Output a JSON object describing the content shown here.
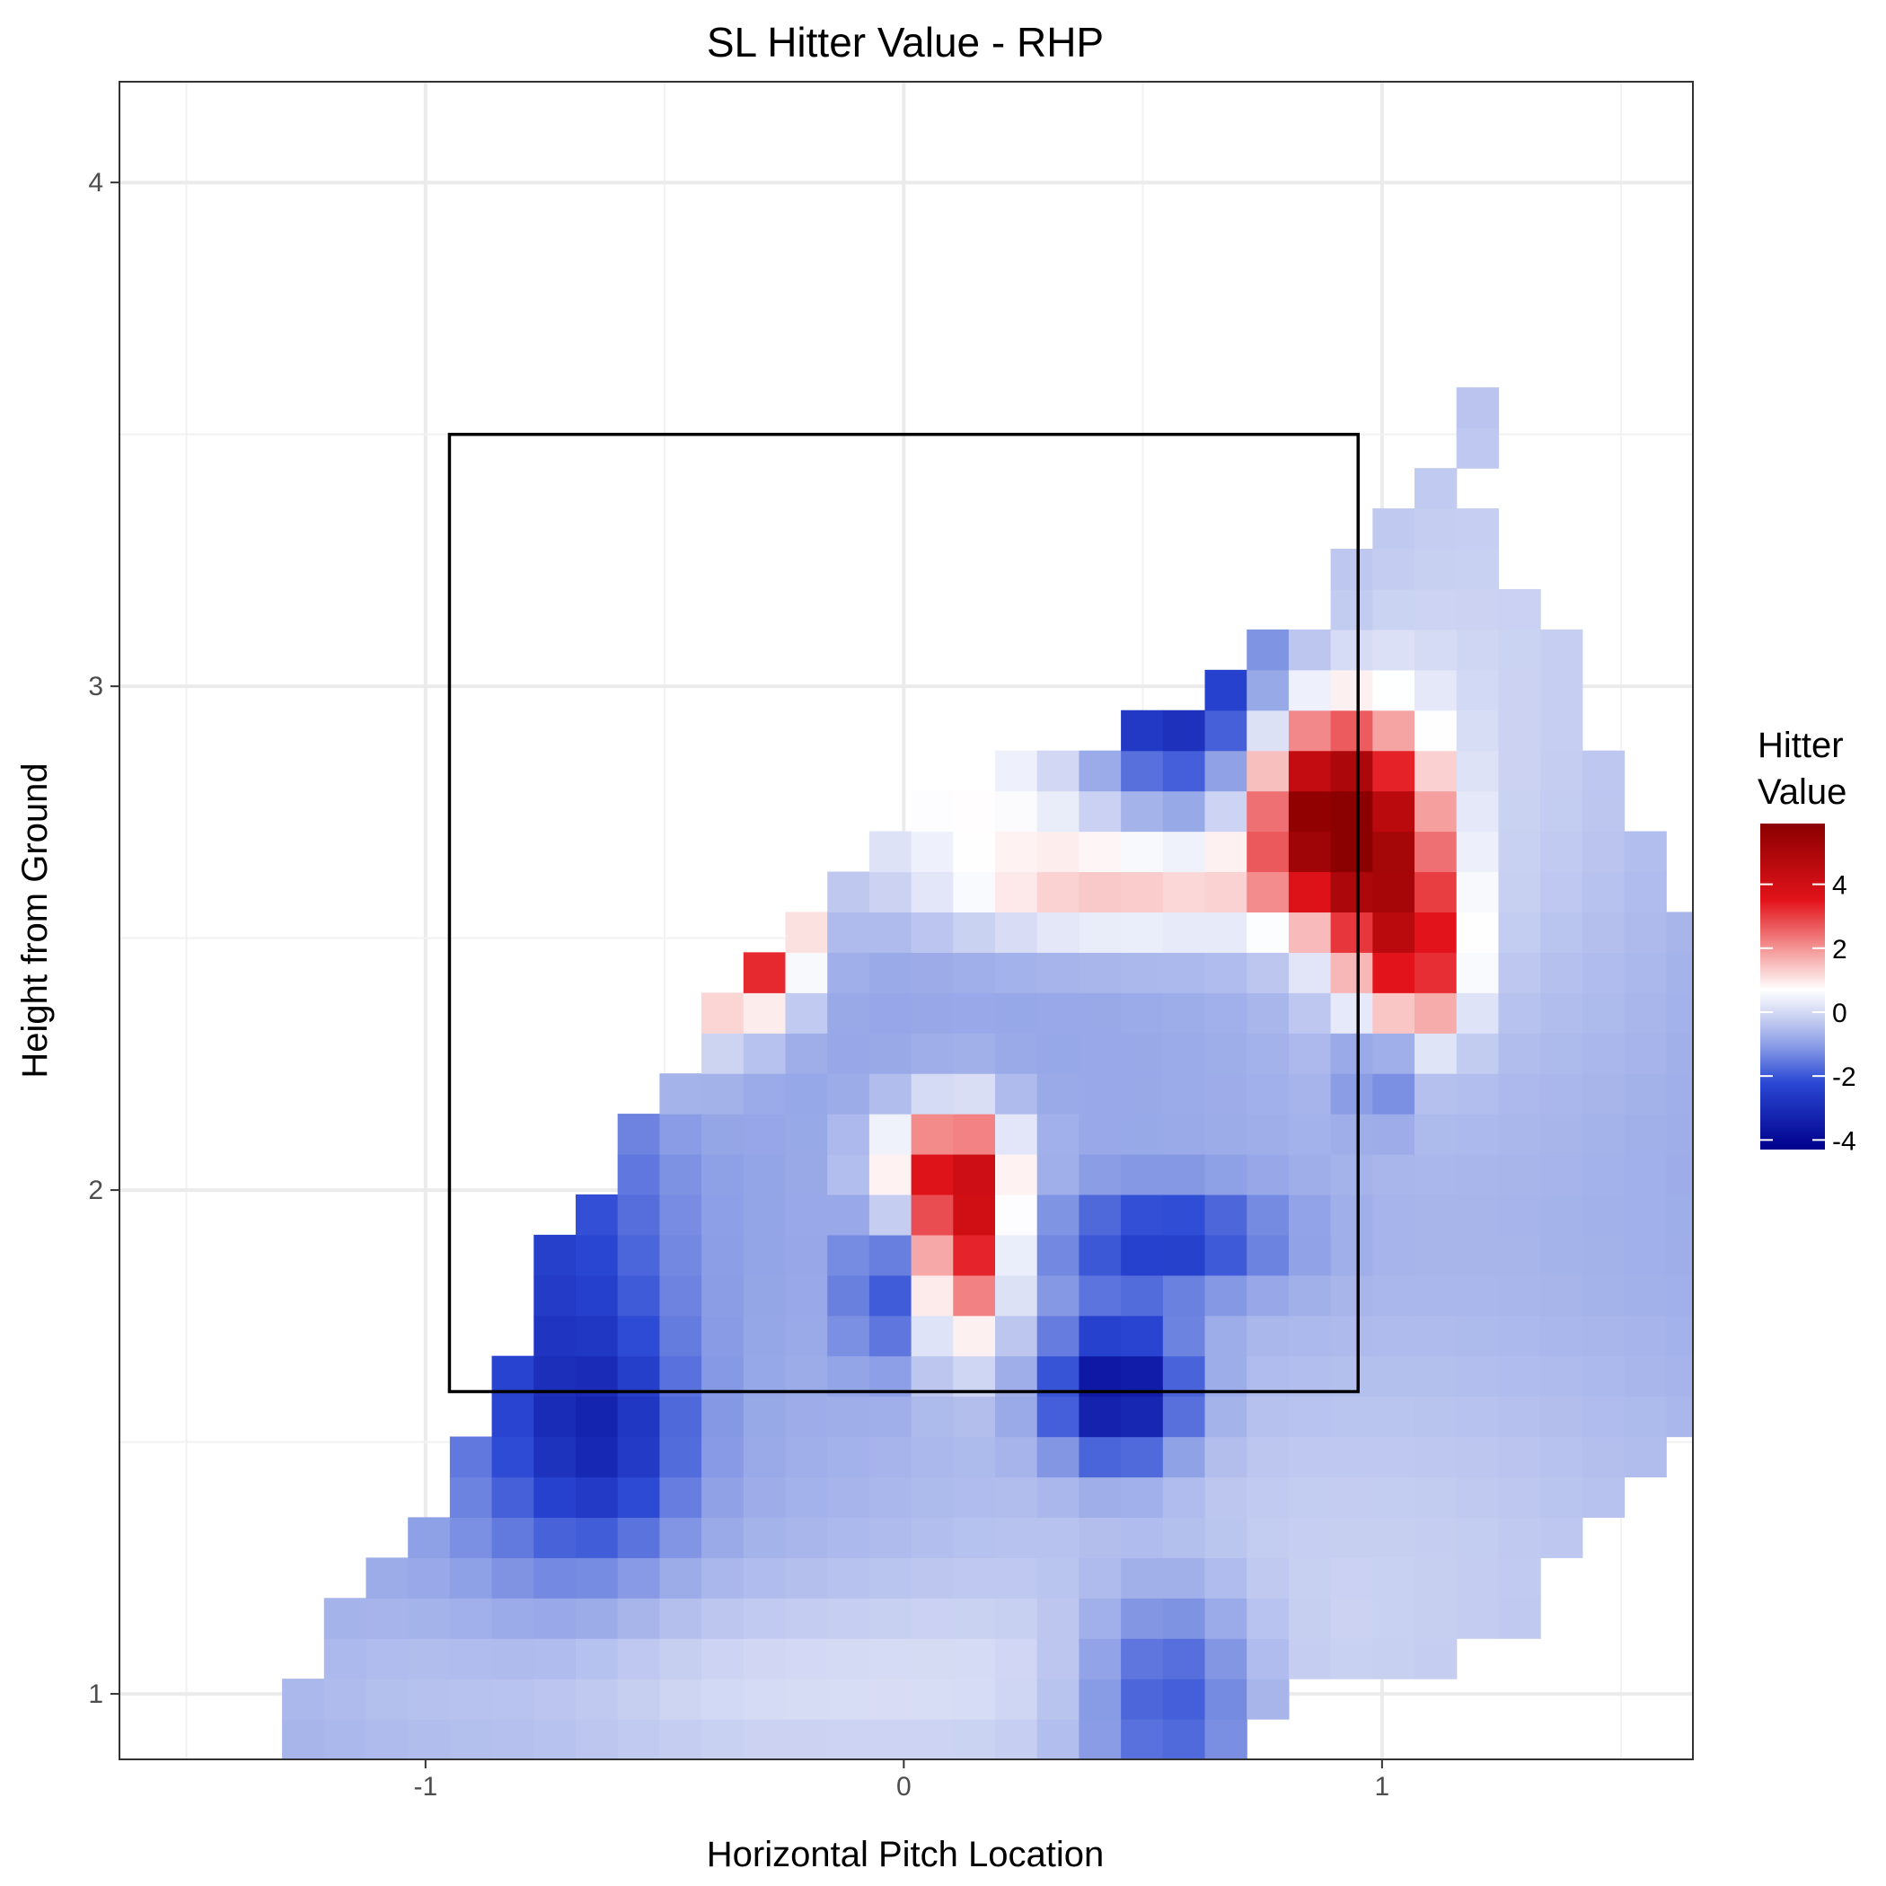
{
  "chart_data": {
    "type": "heatmap",
    "title": "SL Hitter Value - RHP",
    "xlabel": "Horizontal Pitch Location",
    "ylabel": "Height from Ground",
    "xlim": [
      -1.64,
      1.65
    ],
    "ylim": [
      0.87,
      4.2
    ],
    "x_ticks": [
      -1,
      0,
      1
    ],
    "y_ticks": [
      1,
      2,
      3,
      4
    ],
    "x_tick_labels": [
      "-1",
      "0",
      "1"
    ],
    "y_tick_labels": [
      "1",
      "2",
      "3",
      "4"
    ],
    "grid": true,
    "legend": {
      "title_lines": [
        "Hitter",
        "Value"
      ],
      "position": "right",
      "range": [
        -4.3,
        5.9
      ],
      "ticks": [
        4,
        2,
        0,
        -2,
        -4
      ],
      "tick_labels": [
        "4",
        "2",
        "0",
        "-2",
        "-4"
      ]
    },
    "colorscale": [
      {
        "v": -4.3,
        "color": "#00008b"
      },
      {
        "v": -2.2,
        "color": "#2a48d4"
      },
      {
        "v": -1.0,
        "color": "#8ea0e6"
      },
      {
        "v": 0.0,
        "color": "#d4daf4"
      },
      {
        "v": 0.7,
        "color": "#ffffff"
      },
      {
        "v": 2.0,
        "color": "#f49494"
      },
      {
        "v": 3.5,
        "color": "#e2131a"
      },
      {
        "v": 5.9,
        "color": "#8b0000"
      }
    ],
    "strike_zone": {
      "x": [
        -0.95,
        0.95
      ],
      "y": [
        1.6,
        3.5
      ]
    },
    "grid_cell": {
      "dx": 0.0877,
      "dy": 0.0801
    },
    "grid_origin": {
      "x0": -1.3,
      "y0": 0.87
    },
    "grid_cols": 34,
    "grid_rows": 34,
    "row_spans": [
      [
        0,
        22
      ],
      [
        0,
        23
      ],
      [
        1,
        27
      ],
      [
        1,
        29
      ],
      [
        2,
        29
      ],
      [
        3,
        30
      ],
      [
        4,
        31
      ],
      [
        4,
        32
      ],
      [
        5,
        33
      ],
      [
        5,
        33
      ],
      [
        6,
        33
      ],
      [
        6,
        33
      ],
      [
        6,
        33
      ],
      [
        7,
        33
      ],
      [
        8,
        33
      ],
      [
        8,
        33
      ],
      [
        9,
        33
      ],
      [
        10,
        33
      ],
      [
        10,
        33
      ],
      [
        11,
        33
      ],
      [
        12,
        33
      ],
      [
        13,
        32
      ],
      [
        14,
        32
      ],
      [
        15,
        31
      ],
      [
        17,
        31
      ],
      [
        20,
        30
      ],
      [
        22,
        30
      ],
      [
        23,
        30
      ],
      [
        25,
        29
      ],
      [
        25,
        28
      ],
      [
        26,
        28
      ],
      [
        27,
        27
      ],
      [
        28,
        28
      ],
      [
        28,
        28
      ]
    ],
    "base_value": -0.9,
    "hotspots": [
      {
        "x": -0.3,
        "y": 2.5,
        "amp": 4.6,
        "sx": 0.07,
        "sy": 0.1
      },
      {
        "x": -0.42,
        "y": 2.65,
        "amp": 3.2,
        "sx": 0.08,
        "sy": 0.2
      },
      {
        "x": -0.5,
        "y": 2.45,
        "amp": 2.6,
        "sx": 0.07,
        "sy": 0.12
      },
      {
        "x": 0.13,
        "y": 1.9,
        "amp": 4.2,
        "sx": 0.07,
        "sy": 0.14
      },
      {
        "x": 0.08,
        "y": 2.05,
        "amp": 3.0,
        "sx": 0.1,
        "sy": 0.08
      },
      {
        "x": 0.1,
        "y": 2.8,
        "amp": 1.6,
        "sx": 0.28,
        "sy": 0.1
      },
      {
        "x": 0.45,
        "y": 2.6,
        "amp": 2.2,
        "sx": 0.3,
        "sy": 0.08
      },
      {
        "x": 0.88,
        "y": 2.75,
        "amp": 5.9,
        "sx": 0.1,
        "sy": 0.13
      },
      {
        "x": 1.02,
        "y": 2.6,
        "amp": 3.6,
        "sx": 0.09,
        "sy": 0.2
      },
      {
        "x": 1.09,
        "y": 2.45,
        "amp": 2.2,
        "sx": 0.07,
        "sy": 0.1
      },
      {
        "x": 0.56,
        "y": 3.0,
        "amp": -2.8,
        "sx": 0.13,
        "sy": 0.16
      },
      {
        "x": 0.45,
        "y": 1.6,
        "amp": -3.4,
        "sx": 0.1,
        "sy": 0.1
      },
      {
        "x": 0.55,
        "y": 1.9,
        "amp": -1.8,
        "sx": 0.16,
        "sy": 0.07
      },
      {
        "x": -0.72,
        "y": 1.75,
        "amp": -1.6,
        "sx": 0.16,
        "sy": 0.35
      },
      {
        "x": -0.62,
        "y": 1.5,
        "amp": -1.3,
        "sx": 0.12,
        "sy": 0.14
      },
      {
        "x": -0.05,
        "y": 1.8,
        "amp": -1.5,
        "sx": 0.05,
        "sy": 0.1
      },
      {
        "x": 0.55,
        "y": 1.0,
        "amp": -1.9,
        "sx": 0.13,
        "sy": 0.15
      },
      {
        "x": 1.0,
        "y": 2.25,
        "amp": -1.6,
        "sx": 0.06,
        "sy": 0.08
      },
      {
        "x": 1.2,
        "y": 3.0,
        "amp": 0.8,
        "sx": 0.35,
        "sy": 0.6
      },
      {
        "x": 0.9,
        "y": 1.25,
        "amp": 0.7,
        "sx": 0.7,
        "sy": 0.35
      },
      {
        "x": -0.3,
        "y": 1.0,
        "amp": 0.8,
        "sx": 0.7,
        "sy": 0.15
      }
    ]
  }
}
